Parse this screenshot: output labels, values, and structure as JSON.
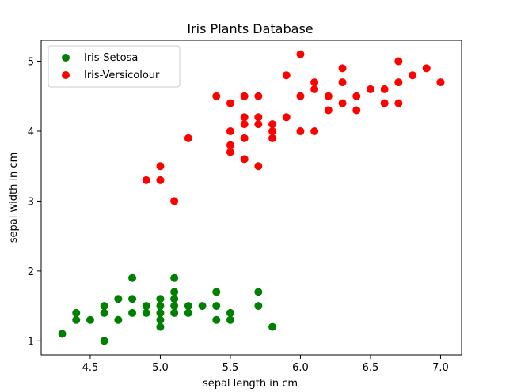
{
  "chart_data": {
    "type": "scatter",
    "title": "Iris Plants Database",
    "xlabel": "sepal length in cm",
    "ylabel": "sepal width in cm",
    "xlim": [
      4.15,
      7.15
    ],
    "ylim": [
      0.8,
      5.3
    ],
    "xticks": [
      4.5,
      5.0,
      5.5,
      6.0,
      6.5,
      7.0
    ],
    "xtick_labels": [
      "4.5",
      "5.0",
      "5.5",
      "6.0",
      "6.5",
      "7.0"
    ],
    "yticks": [
      1,
      2,
      3,
      4,
      5
    ],
    "ytick_labels": [
      "1",
      "2",
      "3",
      "4",
      "5"
    ],
    "grid": false,
    "legend": "upper-left",
    "series": [
      {
        "name": "Iris-Setosa",
        "color": "#008000",
        "points": [
          [
            4.3,
            1.1
          ],
          [
            4.4,
            1.3
          ],
          [
            4.4,
            1.4
          ],
          [
            4.5,
            1.3
          ],
          [
            4.6,
            1.0
          ],
          [
            4.6,
            1.4
          ],
          [
            4.6,
            1.5
          ],
          [
            4.7,
            1.3
          ],
          [
            4.7,
            1.6
          ],
          [
            4.8,
            1.4
          ],
          [
            4.8,
            1.6
          ],
          [
            4.8,
            1.9
          ],
          [
            4.9,
            1.4
          ],
          [
            4.9,
            1.5
          ],
          [
            5.0,
            1.2
          ],
          [
            5.0,
            1.3
          ],
          [
            5.0,
            1.4
          ],
          [
            5.0,
            1.5
          ],
          [
            5.0,
            1.6
          ],
          [
            5.1,
            1.4
          ],
          [
            5.1,
            1.5
          ],
          [
            5.1,
            1.6
          ],
          [
            5.1,
            1.7
          ],
          [
            5.1,
            1.9
          ],
          [
            5.2,
            1.4
          ],
          [
            5.2,
            1.5
          ],
          [
            5.3,
            1.5
          ],
          [
            5.4,
            1.3
          ],
          [
            5.4,
            1.5
          ],
          [
            5.4,
            1.7
          ],
          [
            5.5,
            1.3
          ],
          [
            5.5,
            1.4
          ],
          [
            5.7,
            1.5
          ],
          [
            5.7,
            1.7
          ],
          [
            5.8,
            1.2
          ]
        ]
      },
      {
        "name": "Iris-Versicolour",
        "color": "#ff0000",
        "points": [
          [
            4.9,
            3.3
          ],
          [
            5.0,
            3.3
          ],
          [
            5.0,
            3.5
          ],
          [
            5.1,
            3.0
          ],
          [
            5.2,
            3.9
          ],
          [
            5.4,
            4.5
          ],
          [
            5.5,
            3.7
          ],
          [
            5.5,
            3.8
          ],
          [
            5.5,
            4.0
          ],
          [
            5.5,
            4.4
          ],
          [
            5.6,
            3.6
          ],
          [
            5.6,
            3.9
          ],
          [
            5.6,
            4.1
          ],
          [
            5.6,
            4.2
          ],
          [
            5.6,
            4.5
          ],
          [
            5.7,
            3.5
          ],
          [
            5.7,
            4.1
          ],
          [
            5.7,
            4.2
          ],
          [
            5.7,
            4.5
          ],
          [
            5.8,
            3.9
          ],
          [
            5.8,
            4.0
          ],
          [
            5.8,
            4.1
          ],
          [
            5.9,
            4.2
          ],
          [
            5.9,
            4.8
          ],
          [
            6.0,
            4.0
          ],
          [
            6.0,
            4.5
          ],
          [
            6.0,
            5.1
          ],
          [
            6.1,
            4.0
          ],
          [
            6.1,
            4.6
          ],
          [
            6.1,
            4.7
          ],
          [
            6.2,
            4.3
          ],
          [
            6.2,
            4.5
          ],
          [
            6.3,
            4.4
          ],
          [
            6.3,
            4.7
          ],
          [
            6.3,
            4.9
          ],
          [
            6.4,
            4.3
          ],
          [
            6.4,
            4.5
          ],
          [
            6.5,
            4.6
          ],
          [
            6.6,
            4.4
          ],
          [
            6.6,
            4.6
          ],
          [
            6.7,
            4.4
          ],
          [
            6.7,
            4.7
          ],
          [
            6.7,
            5.0
          ],
          [
            6.8,
            4.8
          ],
          [
            6.9,
            4.9
          ],
          [
            7.0,
            4.7
          ]
        ]
      }
    ]
  }
}
